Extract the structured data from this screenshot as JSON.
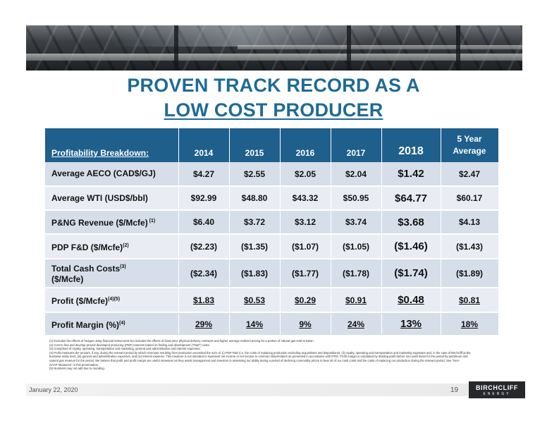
{
  "title": {
    "line1": "PROVEN TRACK RECORD AS A",
    "line2": "LOW COST PRODUCER"
  },
  "table": {
    "header": {
      "label": "Profitability Breakdown:",
      "years": [
        "2014",
        "2015",
        "2016",
        "2017",
        "2018"
      ],
      "avg_line1": "5 Year",
      "avg_line2": "Average"
    },
    "rows": [
      {
        "label": "Average AECO (CAD$/GJ)",
        "sup": "",
        "values": [
          "$4.27",
          "$2.55",
          "$2.05",
          "$2.04",
          "$1.42",
          "$2.47"
        ]
      },
      {
        "label": "Average WTI (USD$/bbl)",
        "sup": "",
        "values": [
          "$92.99",
          "$48.80",
          "$43.32",
          "$50.95",
          "$64.77",
          "$60.17"
        ]
      },
      {
        "label": "P&NG Revenue ($/Mcfe)",
        "sup": " (1)",
        "values": [
          "$6.40",
          "$3.72",
          "$3.12",
          "$3.74",
          "$3.68",
          "$4.13"
        ]
      },
      {
        "label": "PDP F&D ($/Mcfe)",
        "sup": "(2)",
        "values": [
          "($2.23)",
          "($1.35)",
          "($1.07)",
          "($1.05)",
          "($1.46)",
          "($1.43)"
        ]
      },
      {
        "label_line1": "Total Cash Costs",
        "sup": "(3)",
        "label_line2": "($/Mcfe)",
        "values": [
          "($2.34)",
          "($1.83)",
          "($1.77)",
          "($1.78)",
          "($1.74)",
          "($1.89)"
        ]
      },
      {
        "label": "Profit ($/Mcfe)",
        "sup": "(4)(5)",
        "values": [
          "$1.83",
          "$0.53",
          "$0.29",
          "$0.91",
          "$0.48",
          "$0.81"
        ]
      },
      {
        "label": "Profit Margin (%)",
        "sup": "(4)",
        "values": [
          "29%",
          "14%",
          "9%",
          "24%",
          "13%",
          "18%"
        ]
      }
    ]
  },
  "notes": [
    "(1) Excludes the effects of hedges using financial instruments but includes the effects of fixed price physical delivery contracts and higher average realized pricing for a portion of natural gas sold at Dawn.",
    "(2) Cost to find and develop proved developed producing (PDP) reserves based on finding and development (\"F&D\") costs.",
    "(3) Comprised of royalty, operating, transportation and marketing, general and administrative and interest expenses.",
    "(4) Profit measures the amount, if any, during the relevant period by which revenues resulting from production exceeded the sum of: (i) PDP F&D (i.e. the costs of replacing production excluding acquisitions and dispositions); (ii) royalty, operating and transportation and marketing expenses and, in the case of Birchcliff at the",
    "business entity level, (iii) general and administrative expenses, and (iv) interest expense. This measure is not intended to represent net income or net income to common shareholders as presented in accordance with IFRS. Profit margin is calculated by dividing profit before non-cash items for the period by petroleum and",
    "natural gas revenue for the period. We believe that profit and profit margin are useful measures as they assist management and investors in assessing our ability during a period of declining commodity prices to bear all of our cash costs and the costs of replacing our production during the relevant period. See \"Non-",
    "GAAP Measures\" in this presentation.",
    "(5) Numbers may not add due to rounding."
  ],
  "footer": {
    "date": "January 22, 2020",
    "page": "19",
    "logo_name": "BIRCHCLIFF",
    "logo_sub": "ENERGY"
  },
  "colors": {
    "title": "#1f6b95",
    "header_bg": "#1f5f8c",
    "row_odd": "#d6dee9",
    "row_even": "#e9edf3"
  }
}
